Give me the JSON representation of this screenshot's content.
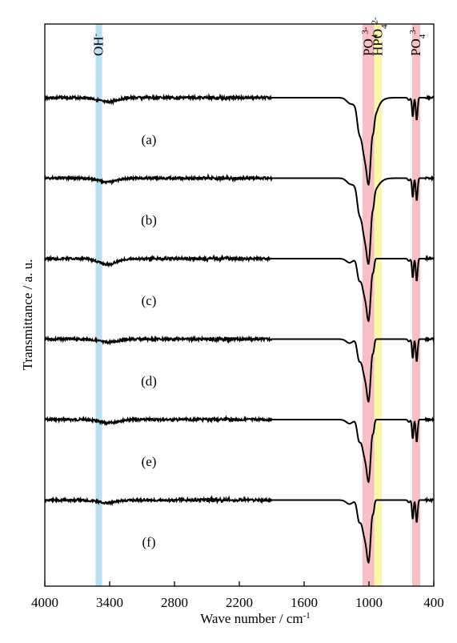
{
  "chart_data": {
    "type": "line",
    "title": "",
    "xlabel_main": "Wave number / cm",
    "xlabel_sup": "-1",
    "ylabel": "Transmittance / a. u.",
    "xlim": [
      4000,
      400
    ],
    "x_reversed": true,
    "x_ticks": [
      "4000",
      "3400",
      "2800",
      "2200",
      "1600",
      "1000",
      "400"
    ],
    "grid": false,
    "legend": "none",
    "bands": [
      {
        "range": [
          3530,
          3470
        ],
        "color": "#b8dff2",
        "label_main": "OH",
        "label_sup": "-",
        "label_sub": ""
      },
      {
        "range": [
          1060,
          950
        ],
        "color": "#f8c0c4",
        "label_main": "PO",
        "label_sub": "4",
        "label_sup": "3-"
      },
      {
        "range": [
          950,
          880
        ],
        "color": "#f9f7a8",
        "label_main": "HPO",
        "label_sub": "4",
        "label_sup": "2-"
      },
      {
        "range": [
          600,
          525
        ],
        "color": "#f8c0c4",
        "label_main": "PO",
        "label_sub": "4",
        "label_sup": "3-"
      }
    ],
    "series": [
      {
        "label": "(a)",
        "features": {
          "oh_depth": 0.7,
          "broad_width": 280,
          "hpo_shoulder": 0.5
        }
      },
      {
        "label": "(b)",
        "features": {
          "oh_depth": 0.6,
          "broad_width": 130,
          "hpo_shoulder": 0.0
        }
      },
      {
        "label": "(c)",
        "features": {
          "oh_depth": 0.9,
          "broad_width": 100,
          "hpo_shoulder": 0.0
        }
      },
      {
        "label": "(d)",
        "features": {
          "oh_depth": 0.5,
          "broad_width": 100,
          "hpo_shoulder": 0.0
        }
      },
      {
        "label": "(e)",
        "features": {
          "oh_depth": 0.55,
          "broad_width": 100,
          "hpo_shoulder": 0.0
        }
      },
      {
        "label": "(f)",
        "features": {
          "oh_depth": 0.45,
          "broad_width": 100,
          "hpo_shoulder": 0.0
        }
      }
    ],
    "colors": {
      "line": "#000000",
      "axis": "#000000"
    }
  }
}
